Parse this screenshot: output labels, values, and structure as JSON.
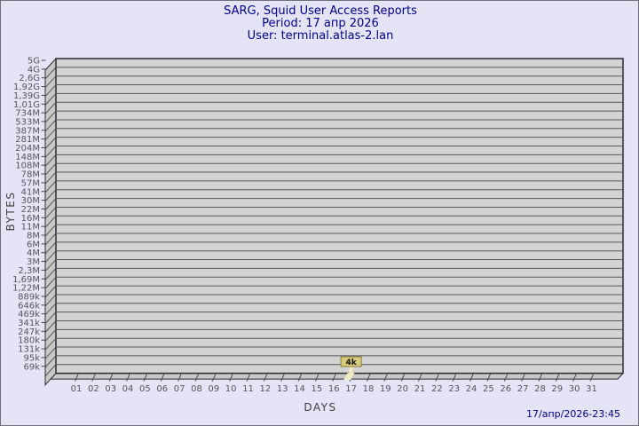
{
  "header": {
    "title": "SARG, Squid User Access Reports",
    "period": "Period: 17 апр 2026",
    "user": "User: terminal.atlas-2.lan"
  },
  "footer": {
    "timestamp": "17/апр/2026-23:45"
  },
  "colors": {
    "background": "#e4e4f6",
    "title_text": "#00008b",
    "plot_fill": "#d3d3d3",
    "wall_fill": "#c8c8c8",
    "grid_line": "#56565a",
    "edge_line": "#2b2b30",
    "tick_line": "#47474b",
    "bar_fill": "#f2ecc4",
    "bar_label_fill": "#d9cb7e",
    "bar_label_border": "#867c38"
  },
  "chart_data": {
    "type": "bar",
    "title": "SARG, Squid User Access Reports",
    "subtitle": [
      "Period: 17 апр 2026",
      "User: terminal.atlas-2.lan"
    ],
    "xlabel": "DAYS",
    "ylabel": "BYTES",
    "grid": true,
    "legend_position": "none",
    "categories": [
      "01",
      "02",
      "03",
      "04",
      "05",
      "06",
      "07",
      "08",
      "09",
      "10",
      "11",
      "12",
      "13",
      "14",
      "15",
      "16",
      "17",
      "18",
      "19",
      "20",
      "21",
      "22",
      "23",
      "24",
      "25",
      "26",
      "27",
      "28",
      "29",
      "30",
      "31"
    ],
    "values": [
      0,
      0,
      0,
      0,
      0,
      0,
      0,
      0,
      0,
      0,
      0,
      0,
      0,
      0,
      0,
      0,
      4000,
      0,
      0,
      0,
      0,
      0,
      0,
      0,
      0,
      0,
      0,
      0,
      0,
      0,
      0
    ],
    "bar_label": "4k",
    "y_tick_labels": [
      "5G",
      "4G",
      "2,6G",
      "1,92G",
      "1,39G",
      "1,01G",
      "734M",
      "533M",
      "387M",
      "281M",
      "204M",
      "148M",
      "108M",
      "78M",
      "57M",
      "41M",
      "30M",
      "22M",
      "16M",
      "11M",
      "8M",
      "6M",
      "4M",
      "3M",
      "2,3M",
      "1,69M",
      "1,22M",
      "889k",
      "646k",
      "469k",
      "341k",
      "247k",
      "180k",
      "131k",
      "95k",
      "69k"
    ],
    "y_axis_note": "pseudo-log scale, 5G top to 69k bottom",
    "footer": "17/апр/2026-23:45"
  }
}
